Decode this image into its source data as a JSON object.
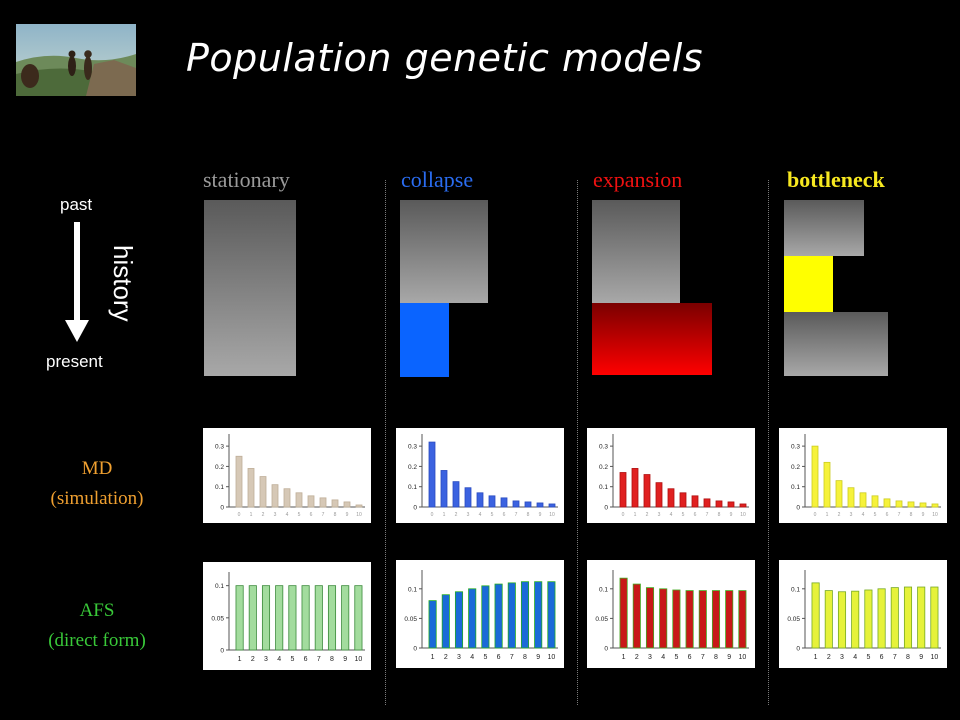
{
  "title": "Population genetic models",
  "side": {
    "past": "past",
    "present": "present",
    "history": "history"
  },
  "row_labels": {
    "md_line1": "MD",
    "md_line2": "(simulation)",
    "afs_line1": "AFS",
    "afs_line2": "(direct form)"
  },
  "models": [
    {
      "label": "stationary",
      "color": "#9a9a9a"
    },
    {
      "label": "collapse",
      "color": "#2a6cf0"
    },
    {
      "label": "expansion",
      "color": "#ee1111"
    },
    {
      "label": "bottleneck",
      "color": "#f7e820"
    }
  ],
  "colors": {
    "md_label": "#f0a030",
    "afs_label": "#39c939",
    "blue_block": "#0a64ff",
    "red_block_top": "#7a0000",
    "red_block_bottom": "#ff0000",
    "yellow_block": "#ffff00"
  },
  "chart_data": [
    {
      "model": "stationary",
      "type": "bar",
      "row": "MD",
      "categories": [
        "0",
        "1",
        "2",
        "3",
        "4",
        "5",
        "6",
        "7",
        "8",
        "9",
        "10"
      ],
      "values": [
        0.25,
        0.19,
        0.15,
        0.11,
        0.09,
        0.07,
        0.055,
        0.045,
        0.035,
        0.025,
        0.01
      ],
      "yticks": [
        0,
        0.1,
        0.2,
        0.3
      ],
      "ylim": [
        0,
        0.34
      ],
      "bar_fill": "#d6c8b6",
      "bar_stroke": "#bfae98"
    },
    {
      "model": "collapse",
      "type": "bar",
      "row": "MD",
      "categories": [
        "0",
        "1",
        "2",
        "3",
        "4",
        "5",
        "6",
        "7",
        "8",
        "9",
        "10"
      ],
      "values": [
        0.32,
        0.18,
        0.125,
        0.095,
        0.07,
        0.055,
        0.045,
        0.03,
        0.025,
        0.02,
        0.015
      ],
      "yticks": [
        0,
        0.1,
        0.2,
        0.3
      ],
      "ylim": [
        0,
        0.34
      ],
      "bar_fill": "#3b62e0",
      "bar_stroke": "#2a4cc0"
    },
    {
      "model": "expansion",
      "type": "bar",
      "row": "MD",
      "categories": [
        "0",
        "1",
        "2",
        "3",
        "4",
        "5",
        "6",
        "7",
        "8",
        "9",
        "10"
      ],
      "values": [
        0.17,
        0.19,
        0.16,
        0.12,
        0.09,
        0.07,
        0.055,
        0.04,
        0.03,
        0.025,
        0.015
      ],
      "yticks": [
        0,
        0.1,
        0.2,
        0.3
      ],
      "ylim": [
        0,
        0.34
      ],
      "bar_fill": "#e02020",
      "bar_stroke": "#b01010"
    },
    {
      "model": "bottleneck",
      "type": "bar",
      "row": "MD",
      "categories": [
        "0",
        "1",
        "2",
        "3",
        "4",
        "5",
        "6",
        "7",
        "8",
        "9",
        "10"
      ],
      "values": [
        0.3,
        0.22,
        0.13,
        0.095,
        0.07,
        0.055,
        0.04,
        0.03,
        0.025,
        0.02,
        0.015
      ],
      "yticks": [
        0,
        0.1,
        0.2,
        0.3
      ],
      "ylim": [
        0,
        0.34
      ],
      "bar_fill": "#f6f23a",
      "bar_stroke": "#cccc20"
    },
    {
      "model": "stationary",
      "type": "bar",
      "row": "AFS",
      "categories": [
        "1",
        "2",
        "3",
        "4",
        "5",
        "6",
        "7",
        "8",
        "9",
        "10"
      ],
      "values": [
        0.1,
        0.1,
        0.1,
        0.1,
        0.1,
        0.1,
        0.1,
        0.1,
        0.1,
        0.1
      ],
      "yticks": [
        0,
        0.05,
        0.1
      ],
      "ylim": [
        0,
        0.115
      ],
      "bar_fill": "#a3dc9e",
      "bar_stroke": "#3a8a3a"
    },
    {
      "model": "collapse",
      "type": "bar",
      "row": "AFS",
      "categories": [
        "1",
        "2",
        "3",
        "4",
        "5",
        "6",
        "7",
        "8",
        "9",
        "10"
      ],
      "values": [
        0.08,
        0.09,
        0.095,
        0.1,
        0.105,
        0.108,
        0.11,
        0.112,
        0.112,
        0.112
      ],
      "yticks": [
        0,
        0.05,
        0.1
      ],
      "ylim": [
        0,
        0.125
      ],
      "bar_fill": "#1a6ad8",
      "bar_stroke": "#22aa22"
    },
    {
      "model": "expansion",
      "type": "bar",
      "row": "AFS",
      "categories": [
        "1",
        "2",
        "3",
        "4",
        "5",
        "6",
        "7",
        "8",
        "9",
        "10"
      ],
      "values": [
        0.118,
        0.108,
        0.102,
        0.1,
        0.098,
        0.097,
        0.097,
        0.097,
        0.097,
        0.097
      ],
      "yticks": [
        0,
        0.05,
        0.1
      ],
      "ylim": [
        0,
        0.125
      ],
      "bar_fill": "#c81818",
      "bar_stroke": "#44aa22"
    },
    {
      "model": "bottleneck",
      "type": "bar",
      "row": "AFS",
      "categories": [
        "1",
        "2",
        "3",
        "4",
        "5",
        "6",
        "7",
        "8",
        "9",
        "10"
      ],
      "values": [
        0.11,
        0.097,
        0.095,
        0.096,
        0.098,
        0.1,
        0.102,
        0.103,
        0.103,
        0.103
      ],
      "yticks": [
        0,
        0.05,
        0.1
      ],
      "ylim": [
        0,
        0.125
      ],
      "bar_fill": "#e6f23a",
      "bar_stroke": "#77aa22"
    }
  ]
}
